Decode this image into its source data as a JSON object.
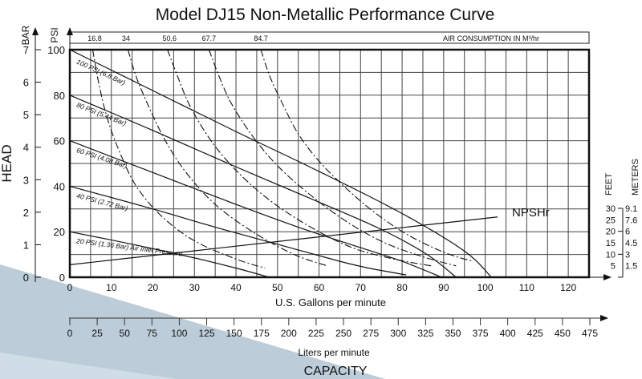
{
  "chart_data": {
    "type": "line",
    "title": "Model DJ15 Non-Metallic Performance Curve",
    "xlabel": "U.S. Gallons per minute",
    "xlabel2": "Liters per minute",
    "xlabel3": "CAPACITY",
    "ylabel": "HEAD",
    "ylabel_psi": "PSI",
    "ylabel_bar": "BAR",
    "xlim": [
      0,
      125
    ],
    "ylim": [
      0,
      100
    ],
    "grid": true,
    "x_ticks": [
      "0",
      "10",
      "20",
      "30",
      "40",
      "50",
      "60",
      "70",
      "80",
      "90",
      "100",
      "110",
      "120"
    ],
    "x_tick_values": [
      0,
      10,
      20,
      30,
      40,
      50,
      60,
      70,
      80,
      90,
      100,
      110,
      120
    ],
    "lpm_ticks": [
      "0",
      "25",
      "50",
      "75",
      "100",
      "125",
      "150",
      "175",
      "200",
      "225",
      "250",
      "275",
      "300",
      "325",
      "350",
      "375",
      "400",
      "425",
      "450",
      "475"
    ],
    "lpm_tick_values": [
      0,
      25,
      50,
      75,
      100,
      125,
      150,
      175,
      200,
      225,
      250,
      275,
      300,
      325,
      350,
      375,
      400,
      425,
      450,
      475
    ],
    "psi_ticks": [
      "0",
      "20",
      "40",
      "60",
      "80",
      "100"
    ],
    "psi_tick_values": [
      0,
      20,
      40,
      60,
      80,
      100
    ],
    "bar_ticks": [
      "0",
      "1",
      "2",
      "3",
      "4",
      "5",
      "6",
      "7"
    ],
    "bar_tick_values": [
      0,
      1,
      2,
      3,
      4,
      5,
      6,
      7
    ],
    "air_consumption": {
      "label": "AIR CONSUMPTION IN M³/hr",
      "labels": [
        "16.8",
        "34",
        "50.6",
        "67.7",
        "84.7"
      ],
      "label_gpm": [
        6,
        13.5,
        24,
        33.5,
        46
      ]
    },
    "npsh": {
      "label": "NPSHr",
      "feet_label": "FEET",
      "meters_label": "METERS",
      "feet_ticks": [
        "30",
        "25",
        "20",
        "15",
        "10",
        "5"
      ],
      "meters_ticks": [
        "9.1",
        "7.6",
        "6",
        "4.5",
        "3",
        "1.5"
      ],
      "feet_tick_values": [
        30,
        25,
        20,
        15,
        10,
        5
      ],
      "x": [
        0,
        103
      ],
      "y_psi_scale": [
        5.5,
        26.5
      ]
    },
    "series": [
      {
        "name": "100 PSI (6.8 Bar)",
        "style": "solid",
        "x": [
          0,
          20,
          40,
          60,
          80,
          95,
          101.5
        ],
        "y": [
          100,
          82,
          64,
          46.5,
          28,
          11.5,
          0
        ]
      },
      {
        "name": "80 PSI (5.44 Bar)",
        "style": "solid",
        "x": [
          0,
          20,
          40,
          60,
          75,
          86,
          93
        ],
        "y": [
          80,
          64.5,
          48.5,
          33,
          21,
          10,
          0
        ]
      },
      {
        "name": "60 PSI (4.08 Bar)",
        "style": "solid",
        "x": [
          0,
          20,
          40,
          55,
          70,
          80,
          89.5
        ],
        "y": [
          60,
          46,
          32,
          22,
          13,
          7,
          0
        ]
      },
      {
        "name": "40 PSI (2.72 Bar)",
        "style": "solid",
        "x": [
          0,
          20,
          35,
          50,
          65,
          72,
          81
        ],
        "y": [
          40,
          30,
          22,
          14.5,
          7,
          4,
          1
        ]
      },
      {
        "name": "20 PSI (1.36 Bar)",
        "style": "solid",
        "x": [
          0,
          15,
          30,
          40,
          48
        ],
        "y": [
          20,
          14.5,
          8.5,
          4,
          0
        ]
      },
      {
        "name": "16.8",
        "style": "dashed",
        "x": [
          5.5,
          7,
          9,
          12,
          16,
          22,
          30,
          40,
          47
        ],
        "y": [
          100,
          85,
          70,
          55,
          40,
          27,
          16,
          8,
          4
        ]
      },
      {
        "name": "34",
        "style": "dashed",
        "x": [
          14,
          16,
          19,
          23,
          28,
          35,
          44,
          54,
          62
        ],
        "y": [
          100,
          88,
          75,
          60,
          46,
          32,
          20,
          10,
          5
        ]
      },
      {
        "name": "50.6",
        "style": "dashed",
        "x": [
          23.5,
          26,
          29,
          34,
          40,
          48,
          58,
          68,
          78,
          87
        ],
        "y": [
          100,
          88,
          75,
          60,
          47,
          34,
          22,
          13,
          8,
          5
        ]
      },
      {
        "name": "67.7",
        "style": "dashed",
        "x": [
          33.5,
          36,
          39,
          44,
          50,
          58,
          67,
          76,
          85,
          93
        ],
        "y": [
          100,
          88,
          76,
          62,
          49,
          36,
          24,
          15,
          9,
          5
        ]
      },
      {
        "name": "84.7",
        "style": "dashed",
        "x": [
          46,
          48,
          51,
          55,
          60,
          66,
          73,
          81,
          90,
          97
        ],
        "y": [
          100,
          89,
          77,
          63,
          51,
          40,
          29,
          19,
          11,
          7
        ]
      }
    ],
    "annotations": [
      {
        "text": "100 PSI (6.8 Bar)"
      },
      {
        "text": "80 PSI (5.44 Bar)"
      },
      {
        "text": "60 PSI (4.08 Bar)"
      },
      {
        "text": "40 PSI (2.72 Bar)"
      },
      {
        "text": "20 PSI (1.36 Bar)  Air Inlet Pressure"
      }
    ]
  },
  "colors": {
    "background_band_dark": "#b9cbd8",
    "background_band_light": "#cfdde6",
    "ink": "#111111",
    "grid": "#444444"
  }
}
